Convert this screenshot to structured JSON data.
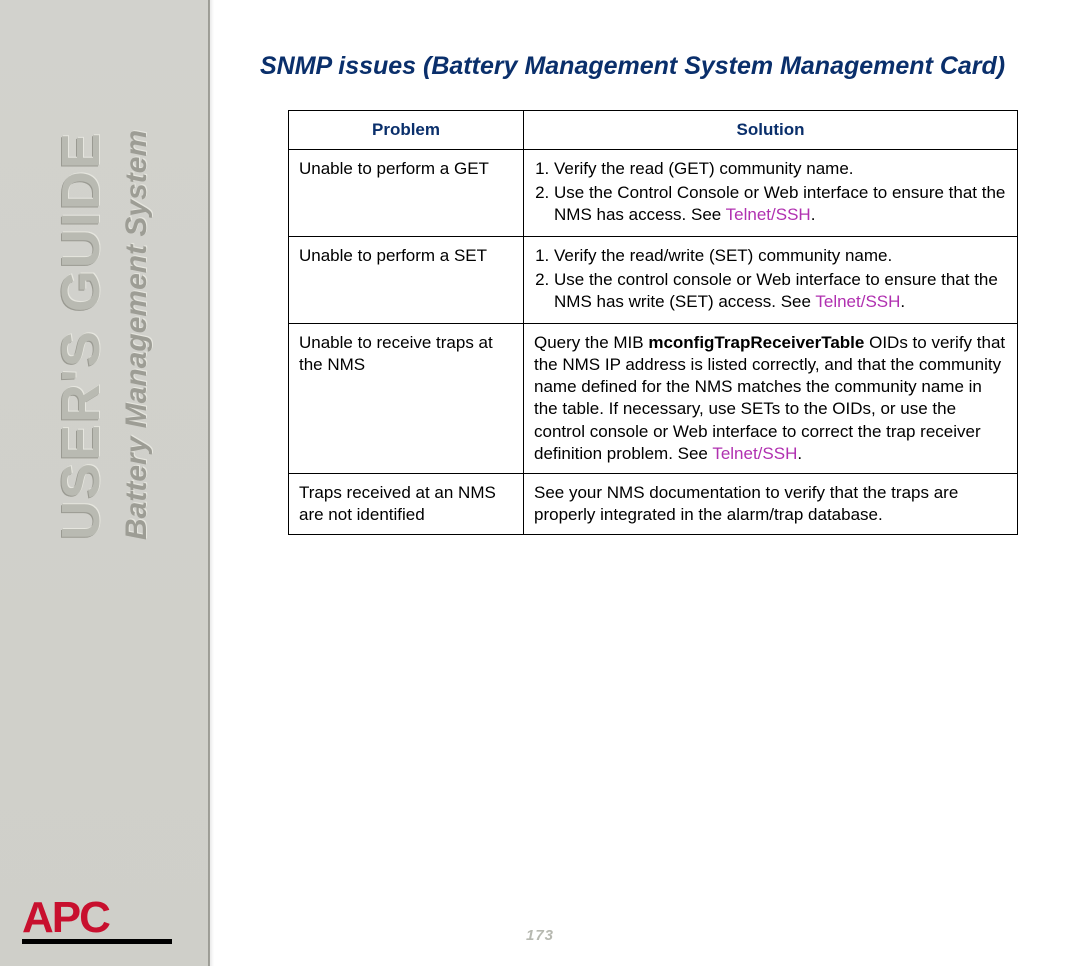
{
  "sidebar": {
    "title": "USER'S GUIDE",
    "subtitle": "Battery Management System",
    "logo_text": "APC"
  },
  "heading": "SNMP issues (Battery Management System Management Card)",
  "table": {
    "columns": [
      "Problem",
      "Solution"
    ],
    "rows": [
      {
        "problem": "Unable to perform a GET",
        "solution_items": [
          {
            "pre": "Verify the read (GET) community name."
          },
          {
            "pre": "Use the Control Console or Web interface to ensure that the NMS has access. See ",
            "link": "Telnet/SSH",
            "post": "."
          }
        ]
      },
      {
        "problem": "Unable to perform a SET",
        "solution_items": [
          {
            "pre": "Verify the read/write (SET) community name."
          },
          {
            "pre": "Use the control console or Web interface to ensure that the NMS has write (SET) access. See ",
            "link": "Telnet/SSH",
            "post": "."
          }
        ]
      },
      {
        "problem": "Unable to receive traps at the NMS",
        "solution_text": {
          "pre": "Query the MIB ",
          "bold": "mconfigTrapReceiverTable",
          "mid": " OIDs to verify that the NMS IP address is listed correctly, and that the community name defined for the NMS matches the community name in the table. If necessary, use SETs to the OIDs, or use the control console or Web interface to correct the trap receiver definition problem. See ",
          "link": "Telnet/SSH",
          "post": "."
        }
      },
      {
        "problem": "Traps received at an NMS are not identified",
        "solution_plain": "See your NMS documentation to verify that the traps are properly integrated in the alarm/trap database."
      }
    ]
  },
  "page_number": "173",
  "colors": {
    "heading": "#0a2f6b",
    "link": "#b030b0",
    "logo": "#c8102e",
    "sidebar_bg": "#d2d2cd"
  }
}
